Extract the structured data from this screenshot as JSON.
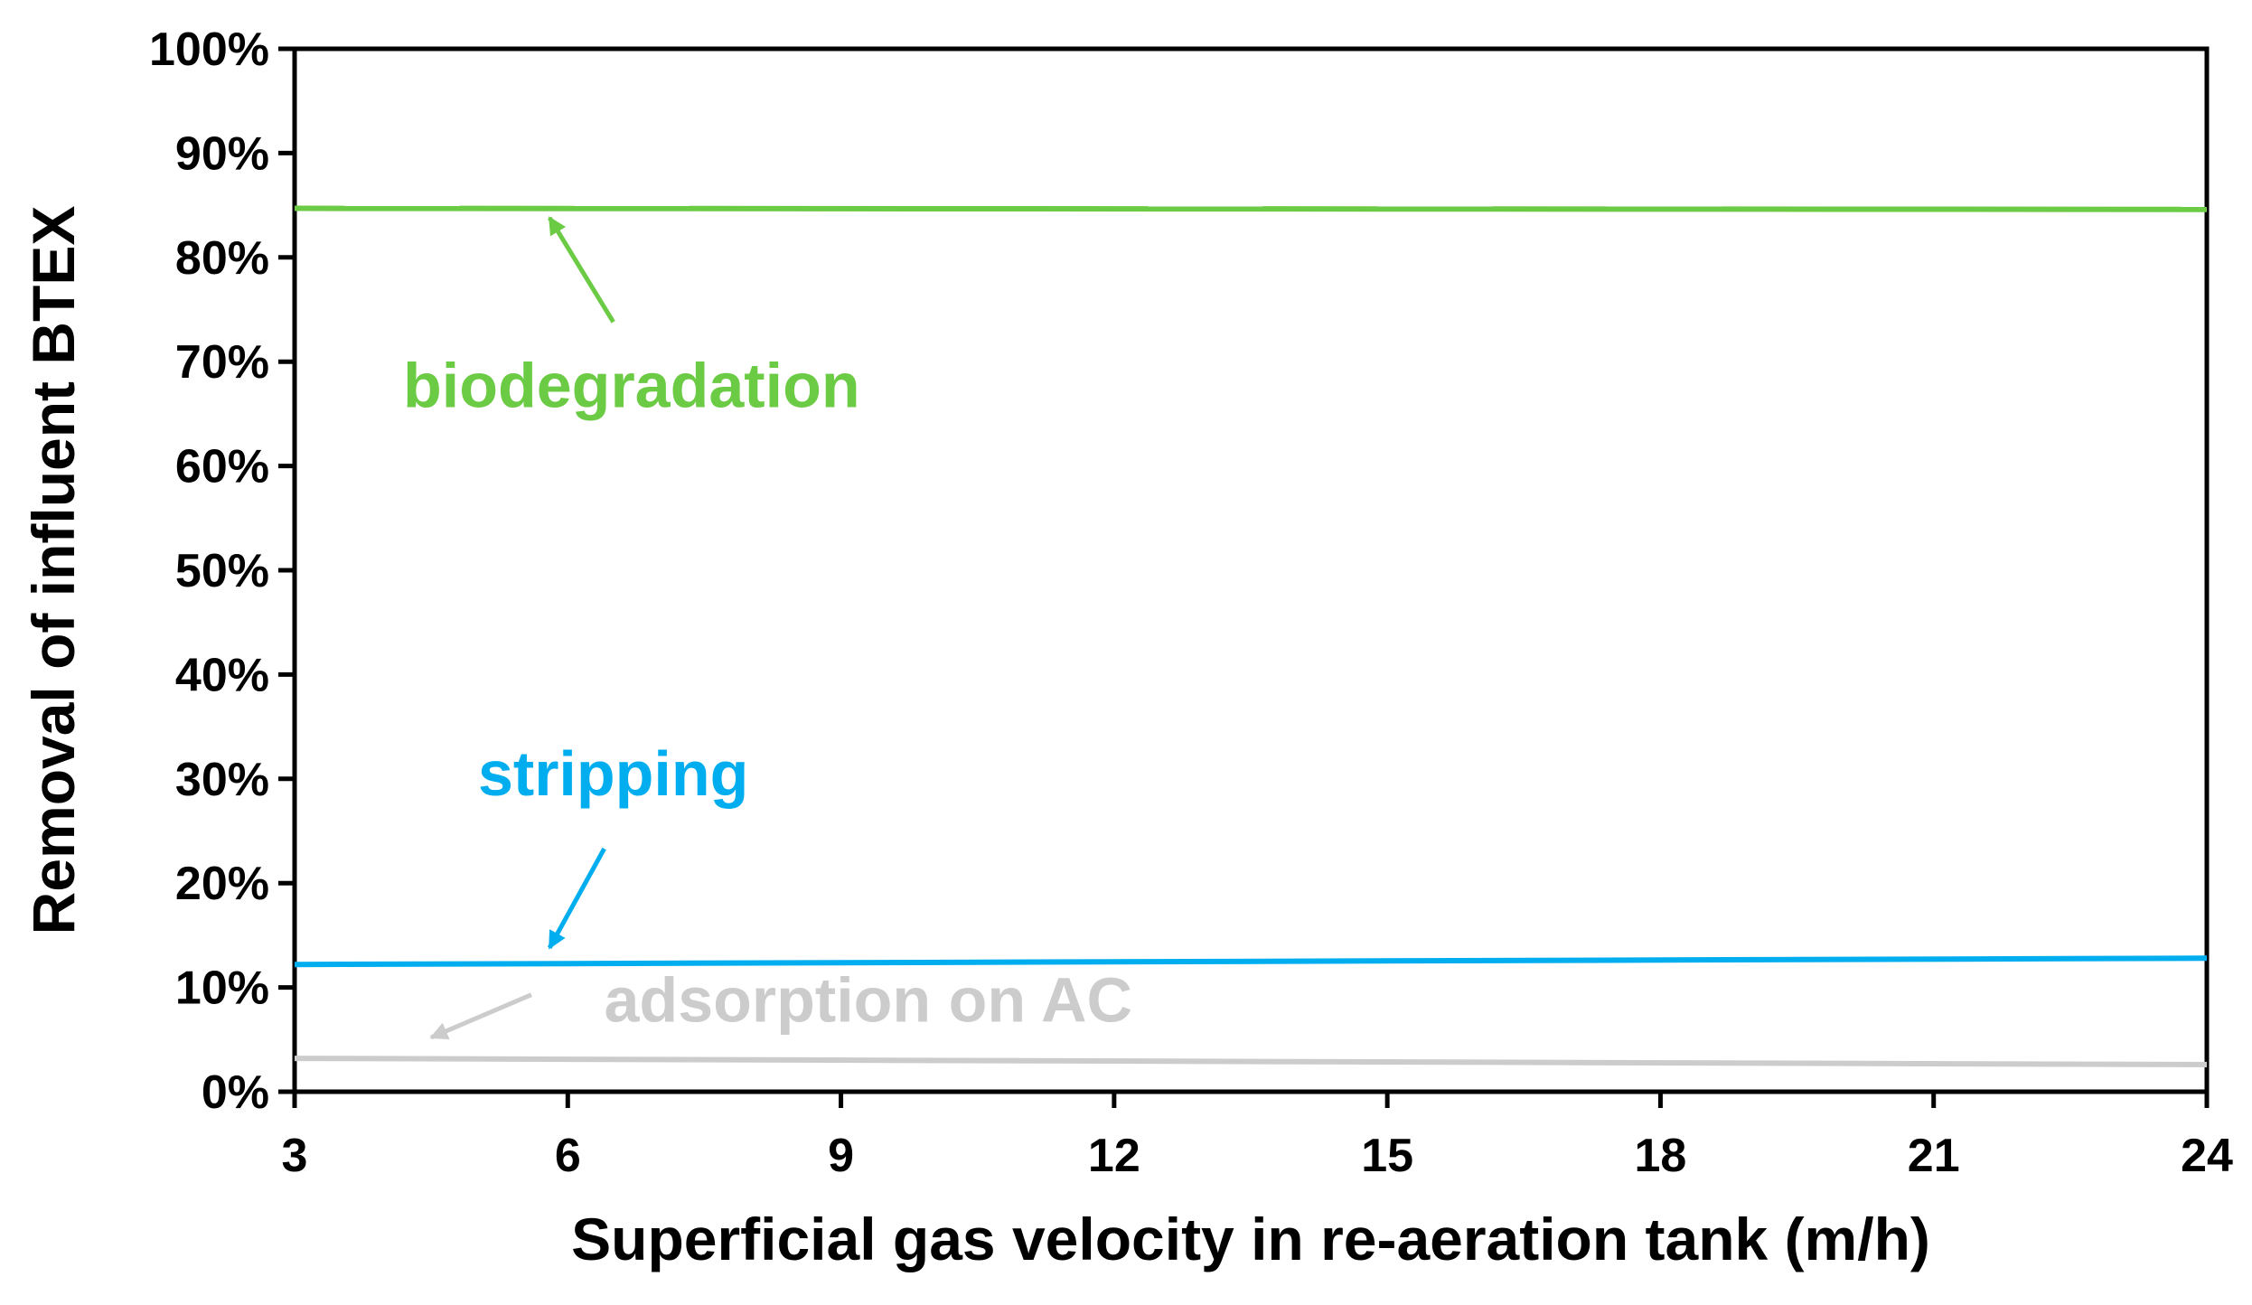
{
  "chart_data": {
    "type": "line",
    "title": "",
    "xlabel": "Superficial gas velocity in re-aeration tank (m/h)",
    "ylabel": "Removal of influent BTEX",
    "xlim": [
      3,
      24
    ],
    "ylim": [
      0,
      100
    ],
    "x_ticks": [
      3,
      6,
      9,
      12,
      15,
      18,
      21,
      24
    ],
    "x_tick_labels": [
      "3",
      "6",
      "9",
      "12",
      "15",
      "18",
      "21",
      "24"
    ],
    "y_ticks": [
      0,
      10,
      20,
      30,
      40,
      50,
      60,
      70,
      80,
      90,
      100
    ],
    "y_tick_labels": [
      "0%",
      "10%",
      "20%",
      "30%",
      "40%",
      "50%",
      "60%",
      "70%",
      "80%",
      "90%",
      "100%"
    ],
    "grid": false,
    "legend": "none (series labelled by in-plot annotations)",
    "series": [
      {
        "name": "biodegradation",
        "color": "#6CCB45",
        "x": [
          3,
          24
        ],
        "y": [
          84.7,
          84.6
        ]
      },
      {
        "name": "stripping",
        "color": "#00ADEE",
        "x": [
          3,
          24
        ],
        "y": [
          12.2,
          12.8
        ]
      },
      {
        "name": "adsorption on AC",
        "color": "#CCCCCC",
        "x": [
          3,
          24
        ],
        "y": [
          3.2,
          2.6
        ]
      }
    ],
    "annotations": [
      {
        "text": "biodegradation",
        "series": "biodegradation",
        "label_at": [
          6.7,
          67.7
        ],
        "arrow_from": [
          6.5,
          73.8
        ],
        "arrow_to": [
          5.8,
          83.8
        ]
      },
      {
        "text": "stripping",
        "series": "stripping",
        "label_at": [
          6.5,
          30.5
        ],
        "arrow_from": [
          6.4,
          23.3
        ],
        "arrow_to": [
          5.8,
          13.8
        ]
      },
      {
        "text": "adsorption on AC",
        "series": "adsorption on AC",
        "label_at": [
          9.3,
          8.8
        ],
        "arrow_from": [
          5.6,
          9.3
        ],
        "arrow_to": [
          4.5,
          5.2
        ]
      }
    ]
  }
}
